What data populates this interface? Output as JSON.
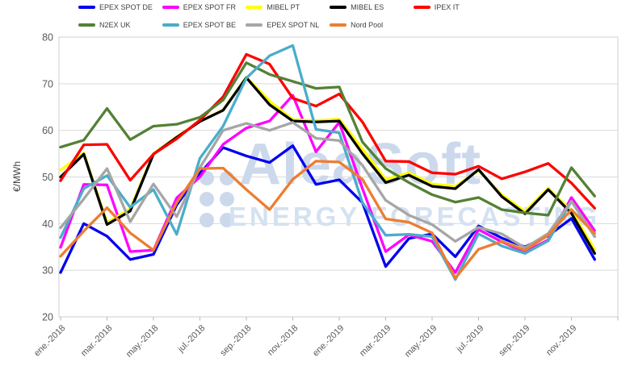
{
  "watermark": {
    "line1": "AleaSoft",
    "line2": "ENERGY FORECASTING"
  },
  "y_axis": {
    "title": "€/MWh",
    "ticks": [
      80,
      70,
      60,
      50,
      40,
      30,
      20
    ],
    "min": 20,
    "max": 80
  },
  "x_axis": {
    "tick_labels": [
      "ene.-2018",
      "mar.-2018",
      "may.-2018",
      "jul.-2018",
      "sep.-2018",
      "nov.-2018",
      "ene.-2019",
      "mar.-2019",
      "may.-2019",
      "jul.-2019",
      "sep.-2019",
      "nov.-2019"
    ]
  },
  "legend": {
    "rows": [
      [
        {
          "label": "EPEX SPOT DE",
          "color": "#0000f0"
        },
        {
          "label": "EPEX SPOT FR",
          "color": "#ff00ff"
        },
        {
          "label": "MIBEL PT",
          "color": "#ffff00"
        },
        {
          "label": "MIBEL ES",
          "color": "#000000"
        },
        {
          "label": "IPEX IT",
          "color": "#fe0000"
        }
      ],
      [
        {
          "label": "N2EX UK",
          "color": "#538135"
        },
        {
          "label": "EPEX SPOT BE",
          "color": "#4aadca"
        },
        {
          "label": "EPEX SPOT NL",
          "color": "#a6a6a6"
        },
        {
          "label": "Nord Pool",
          "color": "#ed7d31"
        }
      ]
    ]
  },
  "chart_data": {
    "type": "line",
    "title": "",
    "ylabel": "€/MWh",
    "ylim": [
      20,
      80
    ],
    "yticks": [
      20,
      30,
      40,
      50,
      60,
      70,
      80
    ],
    "grid": true,
    "legend_position": "top",
    "x": [
      "ene-2018",
      "feb-2018",
      "mar-2018",
      "abr-2018",
      "may-2018",
      "jun-2018",
      "jul-2018",
      "ago-2018",
      "sep-2018",
      "oct-2018",
      "nov-2018",
      "dic-2018",
      "ene-2019",
      "feb-2019",
      "mar-2019",
      "abr-2019",
      "may-2019",
      "jun-2019",
      "jul-2019",
      "ago-2019",
      "sep-2019",
      "oct-2019",
      "nov-2019",
      "dic-2019"
    ],
    "series": [
      {
        "name": "EPEX SPOT DE",
        "color": "#0000f0",
        "values": [
          29.5,
          40.0,
          37.3,
          32.3,
          33.4,
          44.0,
          50.8,
          56.3,
          54.5,
          53.1,
          56.7,
          48.4,
          49.4,
          44.5,
          30.8,
          36.8,
          37.8,
          32.9,
          39.5,
          36.9,
          35.0,
          37.4,
          41.1,
          32.3
        ]
      },
      {
        "name": "EPEX SPOT FR",
        "color": "#ff00ff",
        "values": [
          34.9,
          48.4,
          48.3,
          34.0,
          34.3,
          45.5,
          50.0,
          57.0,
          60.5,
          62.0,
          67.5,
          55.4,
          61.7,
          47.5,
          34.0,
          37.6,
          36.2,
          29.5,
          38.7,
          36.1,
          33.9,
          36.5,
          45.6,
          38.5
        ]
      },
      {
        "name": "MIBEL PT",
        "color": "#ffff00",
        "values": [
          51.5,
          55.1,
          40.2,
          43.2,
          55.0,
          58.6,
          61.9,
          64.4,
          71.4,
          66.3,
          62.3,
          62.1,
          62.4,
          56.0,
          49.5,
          50.9,
          48.5,
          48.0,
          51.4,
          46.2,
          42.6,
          47.6,
          42.7,
          34.5
        ]
      },
      {
        "name": "MIBEL ES",
        "color": "#000000",
        "values": [
          50.0,
          54.9,
          39.8,
          42.7,
          54.9,
          58.5,
          61.9,
          64.3,
          71.3,
          65.5,
          62.0,
          61.8,
          62.0,
          55.0,
          48.8,
          50.4,
          48.0,
          47.5,
          51.6,
          45.8,
          42.1,
          47.3,
          42.2,
          33.6
        ]
      },
      {
        "name": "IPEX IT",
        "color": "#fe0000",
        "values": [
          49.2,
          56.9,
          57.0,
          49.3,
          54.9,
          58.2,
          62.2,
          67.2,
          76.3,
          74.2,
          66.9,
          65.2,
          67.8,
          61.8,
          53.4,
          53.3,
          50.9,
          50.6,
          52.3,
          49.6,
          51.1,
          52.9,
          48.7,
          43.3
        ]
      },
      {
        "name": "N2EX UK",
        "color": "#538135",
        "values": [
          56.4,
          57.9,
          64.7,
          58.0,
          60.9,
          61.3,
          62.8,
          66.5,
          74.5,
          72.0,
          70.5,
          69.0,
          69.3,
          57.5,
          51.8,
          48.8,
          46.2,
          44.6,
          45.6,
          43.0,
          42.3,
          41.8,
          52.0,
          45.9
        ]
      },
      {
        "name": "EPEX SPOT BE",
        "color": "#4aadca",
        "values": [
          37.0,
          47.5,
          50.3,
          43.5,
          47.3,
          37.7,
          54.0,
          60.9,
          71.2,
          76.0,
          78.2,
          60.2,
          59.5,
          44.5,
          37.5,
          37.7,
          37.2,
          28.0,
          37.8,
          35.2,
          33.6,
          36.3,
          44.8,
          37.2
        ]
      },
      {
        "name": "EPEX SPOT NL",
        "color": "#a6a6a6",
        "values": [
          39.1,
          45.3,
          51.8,
          40.4,
          48.5,
          41.5,
          52.0,
          60.0,
          61.5,
          60.0,
          61.7,
          58.3,
          57.8,
          52.5,
          45.0,
          41.8,
          39.8,
          36.2,
          39.2,
          37.8,
          34.8,
          37.9,
          44.8,
          37.3
        ]
      },
      {
        "name": "Nord Pool",
        "color": "#ed7d31",
        "values": [
          33.0,
          38.4,
          43.4,
          38.0,
          34.3,
          44.5,
          51.8,
          51.9,
          47.3,
          43.0,
          49.5,
          53.4,
          53.2,
          49.5,
          41.0,
          40.3,
          38.0,
          28.3,
          34.5,
          36.2,
          34.3,
          37.5,
          43.0,
          37.9
        ]
      }
    ]
  }
}
